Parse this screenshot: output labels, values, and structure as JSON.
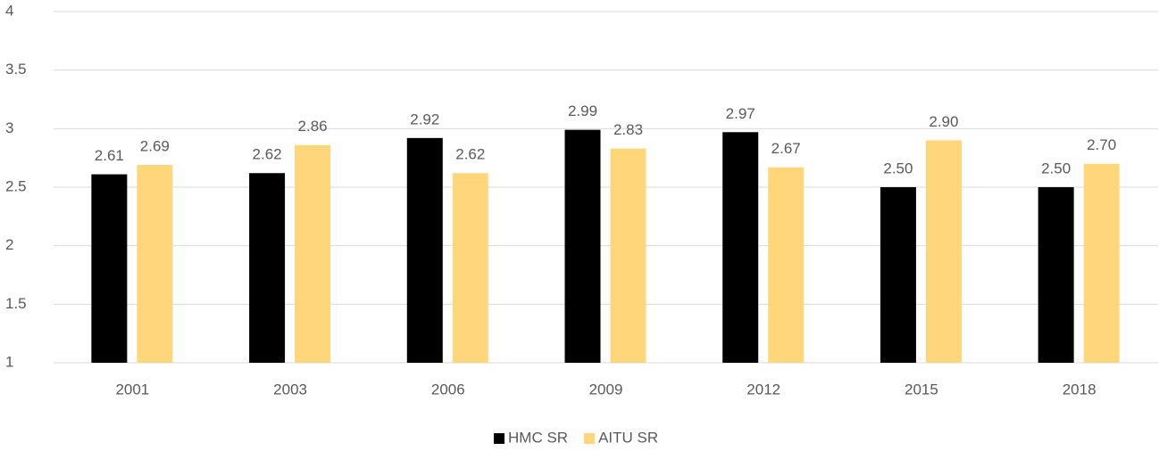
{
  "chart_data": {
    "type": "bar",
    "categories": [
      "2001",
      "2003",
      "2006",
      "2009",
      "2012",
      "2015",
      "2018"
    ],
    "series": [
      {
        "name": "HMC SR",
        "color": "#000000",
        "values": [
          2.61,
          2.62,
          2.92,
          2.99,
          2.97,
          2.5,
          2.5
        ],
        "value_labels": [
          "2.61",
          "2.62",
          "2.92",
          "2.99",
          "2.97",
          "2.50",
          "2.50"
        ]
      },
      {
        "name": "AITU SR",
        "color": "#ffd67a",
        "values": [
          2.69,
          2.86,
          2.62,
          2.83,
          2.67,
          2.9,
          2.7
        ],
        "value_labels": [
          "2.69",
          "2.86",
          "2.62",
          "2.83",
          "2.67",
          "2.90",
          "2.70"
        ]
      }
    ],
    "ylim": [
      1,
      4
    ],
    "yticks": [
      1,
      1.5,
      2,
      2.5,
      3,
      3.5,
      4
    ],
    "grid": true,
    "legend": "bottom"
  }
}
